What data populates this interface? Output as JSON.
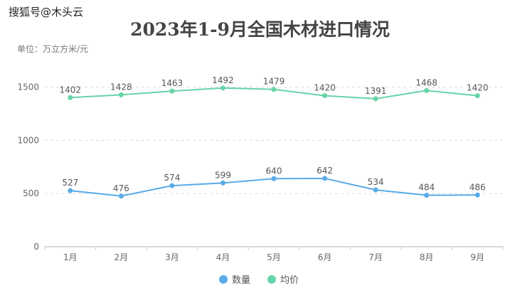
{
  "watermark": "搜狐号@木头云",
  "chart_data": {
    "type": "line",
    "title": "2023年1-9月全国木材进口情况",
    "unit_label": "单位：万立方米/元",
    "categories": [
      "1月",
      "2月",
      "3月",
      "4月",
      "5月",
      "6月",
      "7月",
      "8月",
      "9月"
    ],
    "series": [
      {
        "name": "数量",
        "color": "#5aabe8",
        "values": [
          527,
          476,
          574,
          599,
          640,
          642,
          534,
          484,
          486
        ]
      },
      {
        "name": "均价",
        "color": "#66d4a6",
        "values": [
          1402,
          1428,
          1463,
          1492,
          1479,
          1420,
          1391,
          1468,
          1420
        ]
      }
    ],
    "yticks": [
      0,
      500,
      1000,
      1500
    ],
    "ylim": [
      0,
      1700
    ],
    "grid": true,
    "legend": "bottom-center"
  }
}
